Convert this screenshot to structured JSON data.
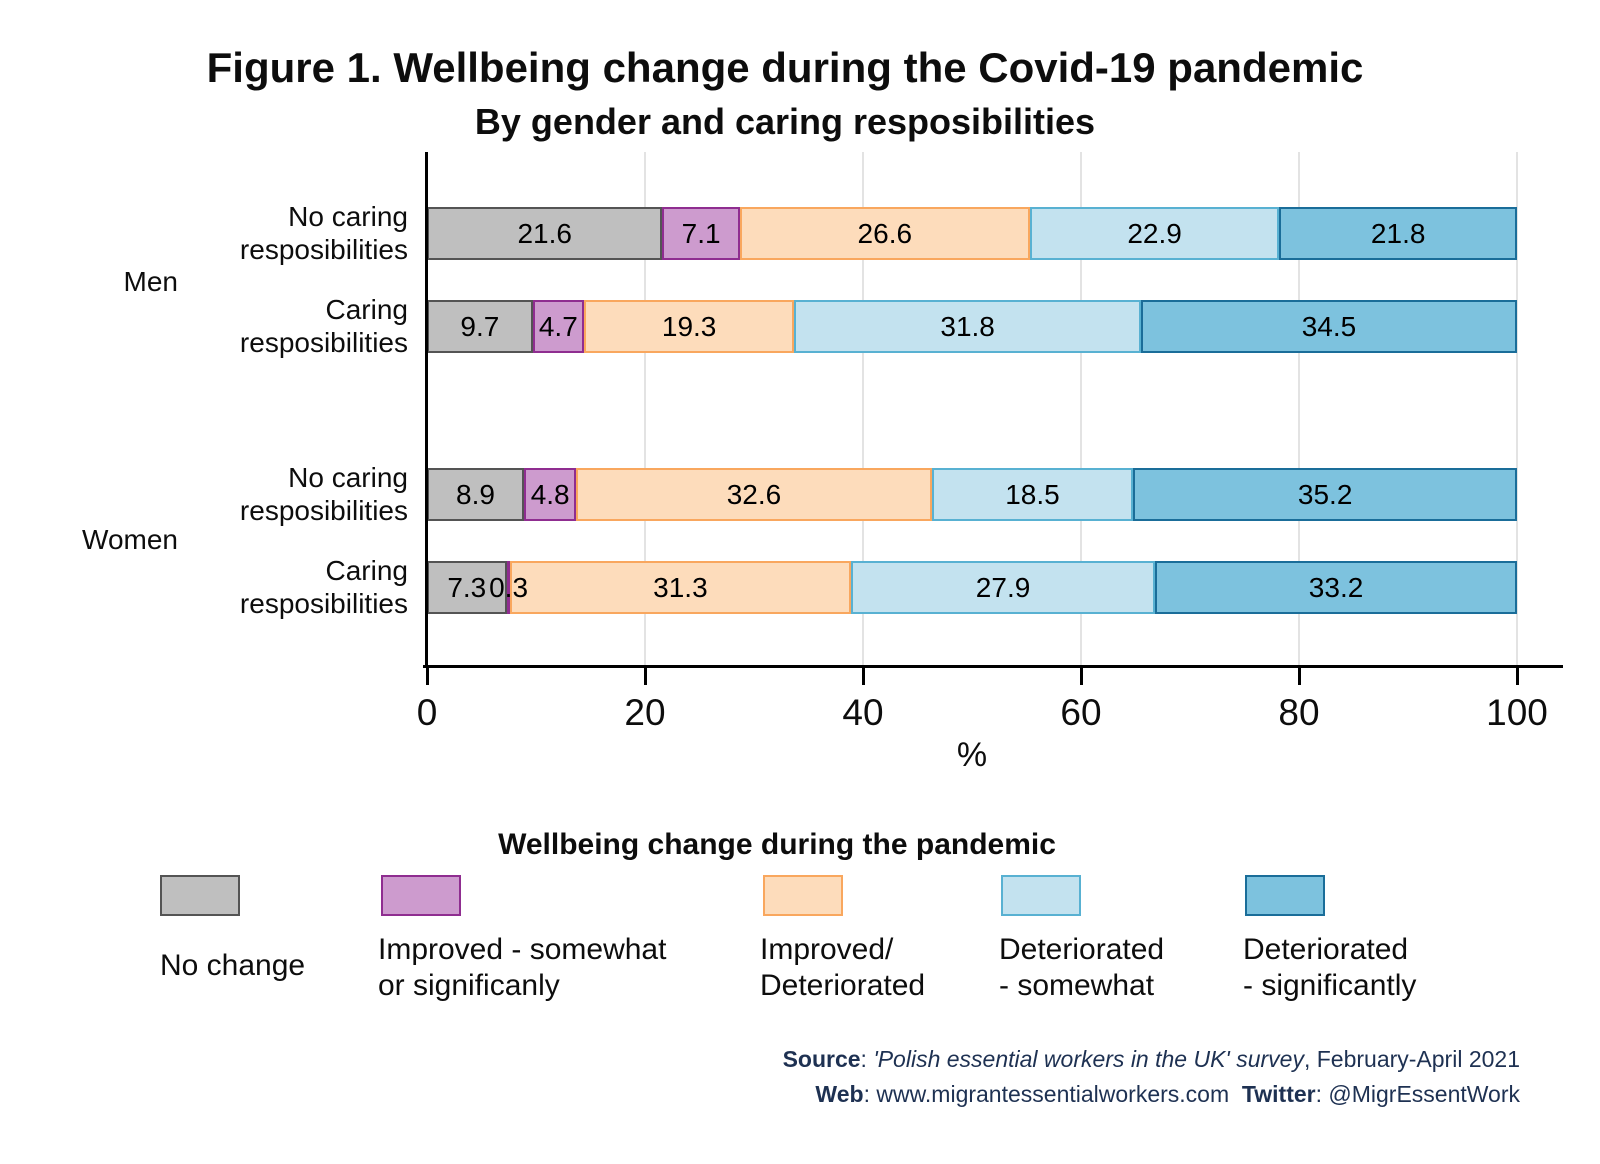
{
  "title": "Figure 1. Wellbeing change during the Covid-19 pandemic",
  "subtitle": "By gender and caring resposibilities",
  "chart_data": {
    "type": "bar",
    "orientation": "horizontal_stacked",
    "xlabel": "%",
    "xlim": [
      0,
      100
    ],
    "x_ticks": [
      "0",
      "20",
      "40",
      "60",
      "80",
      "100"
    ],
    "grid": "vertical_light_gray",
    "groups": [
      {
        "label": "Men"
      },
      {
        "label": "Women"
      }
    ],
    "series": [
      {
        "name": "No change",
        "fill": "#bfbfbf",
        "border": "#545454"
      },
      {
        "name": "Improved - somewhat or significanly",
        "fill": "#cd9bce",
        "border": "#8f2d90"
      },
      {
        "name": "Improved/Deteriorated",
        "fill": "#fddcbb",
        "border": "#f9a75e"
      },
      {
        "name": "Deteriorated - somewhat",
        "fill": "#c3e2ef",
        "border": "#58b1d2"
      },
      {
        "name": "Deteriorated - significantly",
        "fill": "#7dc2de",
        "border": "#1a6d99"
      }
    ],
    "rows": [
      {
        "group": "Men",
        "label": "No caring\nresposibilities",
        "values": [
          21.6,
          7.1,
          26.6,
          22.9,
          21.8
        ]
      },
      {
        "group": "Men",
        "label": "Caring\nresposibilities",
        "values": [
          9.7,
          4.7,
          19.3,
          31.8,
          34.5
        ]
      },
      {
        "group": "Women",
        "label": "No caring\nresposibilities",
        "values": [
          8.9,
          4.8,
          32.6,
          18.5,
          35.2
        ]
      },
      {
        "group": "Women",
        "label": "Caring\nresposibilities",
        "values": [
          7.3,
          0.3,
          31.3,
          27.9,
          33.2
        ]
      }
    ]
  },
  "legend": {
    "title": "Wellbeing change during the pandemic",
    "items": [
      {
        "label": "No change",
        "fill": "#bfbfbf",
        "border": "#545454"
      },
      {
        "label": "Improved - somewhat\nor significanly",
        "fill": "#cd9bce",
        "border": "#8f2d90"
      },
      {
        "label": "Improved/\nDeteriorated",
        "fill": "#fddcbb",
        "border": "#f9a75e"
      },
      {
        "label": "Deteriorated\n- somewhat",
        "fill": "#c3e2ef",
        "border": "#58b1d2"
      },
      {
        "label": "Deteriorated\n- significantly",
        "fill": "#7dc2de",
        "border": "#1a6d99"
      }
    ]
  },
  "footer": {
    "source_label": "Source",
    "source_sep": ": ",
    "source_italic": "'Polish essential workers in the UK' survey",
    "source_rest": ", February-April 2021",
    "web_label": "Web",
    "web_value": ": www.migrantessentialworkers.com",
    "gap": "  ",
    "twitter_label": "Twitter",
    "twitter_value": ": @MigrEssentWork"
  }
}
